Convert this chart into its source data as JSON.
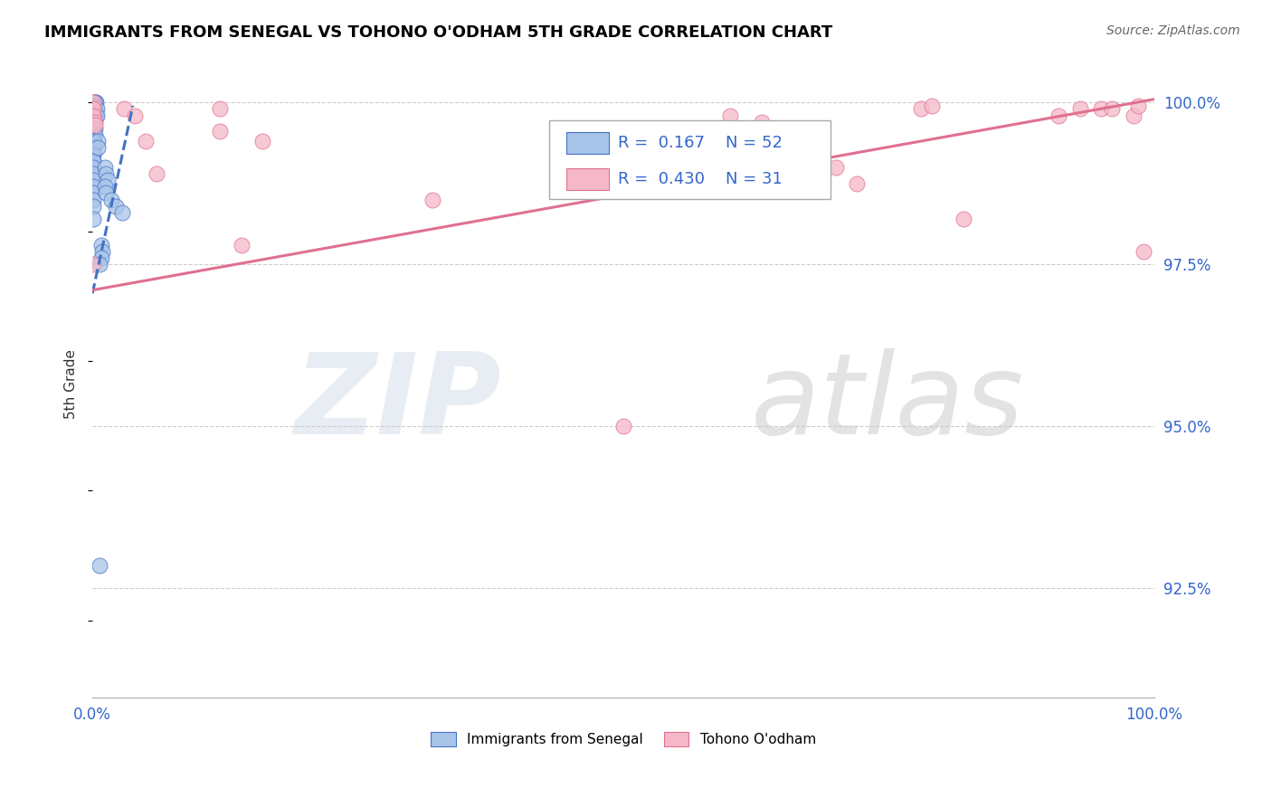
{
  "title": "IMMIGRANTS FROM SENEGAL VS TOHONO O'ODHAM 5TH GRADE CORRELATION CHART",
  "source": "Source: ZipAtlas.com",
  "ylabel": "5th Grade",
  "legend_label1": "Immigrants from Senegal",
  "legend_label2": "Tohono O'odham",
  "R1": 0.167,
  "N1": 52,
  "R2": 0.43,
  "N2": 31,
  "color1": "#a8c4e8",
  "color2": "#f5b8c8",
  "trendline1_color": "#4472c4",
  "trendline2_color": "#e07090",
  "xlim": [
    0.0,
    1.0
  ],
  "ylim": [
    0.908,
    1.005
  ],
  "xticks": [
    0.0,
    0.2,
    0.4,
    0.6,
    0.8,
    1.0
  ],
  "xticklabels": [
    "0.0%",
    "",
    "",
    "",
    "",
    "100.0%"
  ],
  "ytick_right_values": [
    1.0,
    0.975,
    0.95,
    0.925
  ],
  "ytick_right_labels": [
    "100.0%",
    "97.5%",
    "95.0%",
    "92.5%"
  ],
  "gridline_color": "#cccccc",
  "watermark_zip": "ZIP",
  "watermark_atlas": "atlas",
  "blue_dots_x": [
    0.002,
    0.003,
    0.002,
    0.001,
    0.001,
    0.002,
    0.001,
    0.001,
    0.002,
    0.001,
    0.003,
    0.001,
    0.001,
    0.001,
    0.001,
    0.002,
    0.001,
    0.001,
    0.002,
    0.001,
    0.001,
    0.001,
    0.001,
    0.001,
    0.001,
    0.001,
    0.001,
    0.001,
    0.001,
    0.001,
    0.001,
    0.001,
    0.001,
    0.001,
    0.001,
    0.012,
    0.013,
    0.014,
    0.012,
    0.013,
    0.018,
    0.022,
    0.028,
    0.004,
    0.004,
    0.005,
    0.005,
    0.008,
    0.009,
    0.008,
    0.007,
    0.007
  ],
  "blue_dots_y": [
    1.0,
    1.0,
    1.0,
    0.9995,
    0.9995,
    0.999,
    0.999,
    0.999,
    0.998,
    0.998,
    0.998,
    0.997,
    0.997,
    0.997,
    0.996,
    0.996,
    0.996,
    0.995,
    0.995,
    0.994,
    0.994,
    0.993,
    0.993,
    0.992,
    0.992,
    0.991,
    0.991,
    0.99,
    0.989,
    0.988,
    0.987,
    0.986,
    0.985,
    0.984,
    0.982,
    0.99,
    0.989,
    0.988,
    0.987,
    0.986,
    0.985,
    0.984,
    0.983,
    0.999,
    0.998,
    0.994,
    0.993,
    0.978,
    0.977,
    0.976,
    0.975,
    0.9285
  ],
  "pink_dots_x": [
    0.001,
    0.001,
    0.001,
    0.002,
    0.002,
    0.001,
    0.03,
    0.04,
    0.05,
    0.06,
    0.12,
    0.14,
    0.12,
    0.16,
    0.32,
    0.5,
    0.6,
    0.63,
    0.65,
    0.7,
    0.72,
    0.78,
    0.79,
    0.82,
    0.91,
    0.93,
    0.95,
    0.96,
    0.98,
    0.985,
    0.99
  ],
  "pink_dots_y": [
    1.0,
    0.999,
    0.998,
    0.997,
    0.9965,
    0.975,
    0.999,
    0.998,
    0.994,
    0.989,
    0.999,
    0.978,
    0.9955,
    0.994,
    0.985,
    0.95,
    0.998,
    0.997,
    0.996,
    0.99,
    0.9875,
    0.999,
    0.9995,
    0.982,
    0.998,
    0.999,
    0.999,
    0.999,
    0.998,
    0.9995,
    0.977
  ],
  "trendline1_x": [
    0.0,
    0.038
  ],
  "trendline1_y": [
    0.9705,
    0.9995
  ],
  "trendline2_x": [
    0.0,
    1.0
  ],
  "trendline2_y": [
    0.971,
    1.0005
  ]
}
